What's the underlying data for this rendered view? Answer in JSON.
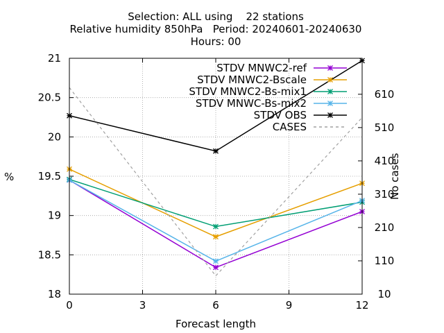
{
  "chart_data": {
    "type": "line",
    "title_lines": [
      "Selection: ALL using    22 stations",
      "Relative humidity 850hPa   Period: 20240601-20240630",
      "Hours: 00"
    ],
    "xlabel": "Forecast length",
    "ylabel": "%",
    "y2label": "No cases",
    "x": [
      0,
      6,
      12
    ],
    "xticks": [
      0,
      3,
      6,
      9,
      12
    ],
    "xlim": [
      0,
      12
    ],
    "ylim": [
      18,
      21
    ],
    "yticks": [
      18,
      18.5,
      19,
      19.5,
      20,
      20.5,
      21
    ],
    "y2lim": [
      10,
      718
    ],
    "y2ticks": [
      10,
      110,
      210,
      310,
      410,
      510,
      610
    ],
    "grid": true,
    "legend_position": "top-right",
    "series": [
      {
        "name": "STDV MNWC2-ref",
        "color": "#9400d3",
        "marker": "x",
        "dash": "",
        "axis": "y1",
        "values": [
          19.45,
          18.34,
          19.05
        ]
      },
      {
        "name": "STDV MNWC2-Bscale",
        "color": "#e69f00",
        "marker": "x",
        "dash": "",
        "axis": "y1",
        "values": [
          19.59,
          18.73,
          19.41
        ]
      },
      {
        "name": "STDV MNWC2-Bs-mix1",
        "color": "#009e73",
        "marker": "x",
        "dash": "",
        "axis": "y1",
        "values": [
          19.46,
          18.86,
          19.17
        ]
      },
      {
        "name": "STDV MNWC-Bs-mix2",
        "color": "#56b4e9",
        "marker": "x",
        "dash": "",
        "axis": "y1",
        "values": [
          19.45,
          18.42,
          19.19
        ]
      },
      {
        "name": "STDV OBS",
        "color": "#000000",
        "marker": "x",
        "dash": "",
        "axis": "y1",
        "values": [
          20.27,
          19.82,
          20.97
        ]
      },
      {
        "name": "CASES",
        "color": "#a0a0a0",
        "marker": "",
        "dash": "4,4",
        "axis": "y2",
        "values": [
          630,
          65,
          540
        ]
      }
    ]
  }
}
